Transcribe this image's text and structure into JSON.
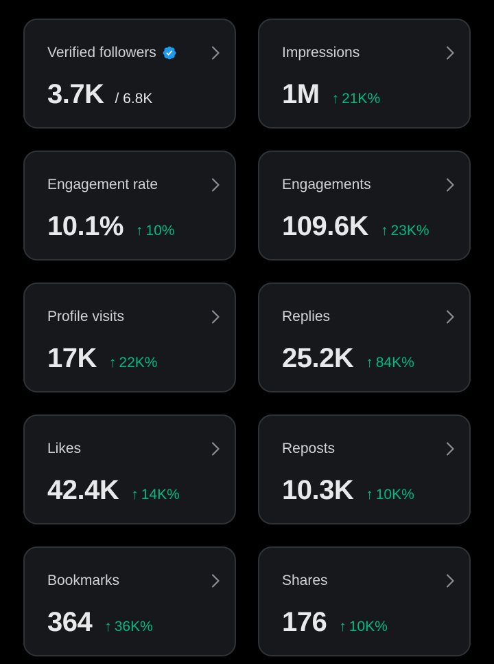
{
  "cards": [
    {
      "title": "Verified followers",
      "value": "3.7K",
      "total": "/ 6.8K",
      "change": "",
      "arrow": "",
      "verified_icon": "verified-badge-icon"
    },
    {
      "title": "Impressions",
      "value": "1M",
      "total": "",
      "change": "21K%",
      "arrow": "↑"
    },
    {
      "title": "Engagement rate",
      "value": "10.1%",
      "total": "",
      "change": "10%",
      "arrow": "↑"
    },
    {
      "title": "Engagements",
      "value": "109.6K",
      "total": "",
      "change": "23K%",
      "arrow": "↑"
    },
    {
      "title": "Profile visits",
      "value": "17K",
      "total": "",
      "change": "22K%",
      "arrow": "↑"
    },
    {
      "title": "Replies",
      "value": "25.2K",
      "total": "",
      "change": "84K%",
      "arrow": "↑"
    },
    {
      "title": "Likes",
      "value": "42.4K",
      "total": "",
      "change": "14K%",
      "arrow": "↑"
    },
    {
      "title": "Reposts",
      "value": "10.3K",
      "total": "",
      "change": "10K%",
      "arrow": "↑"
    },
    {
      "title": "Bookmarks",
      "value": "364",
      "total": "",
      "change": "36K%",
      "arrow": "↑"
    },
    {
      "title": "Shares",
      "value": "176",
      "total": "",
      "change": "10K%",
      "arrow": "↑"
    }
  ],
  "colors": {
    "background": "#000000",
    "card_background": "#16181c",
    "card_border": "#2f3336",
    "positive_change": "#00ba7c",
    "verified_badge": "#1d9bf0"
  },
  "icons": {
    "chevron": "chevron-right-icon",
    "verified": "verified-badge-icon"
  }
}
